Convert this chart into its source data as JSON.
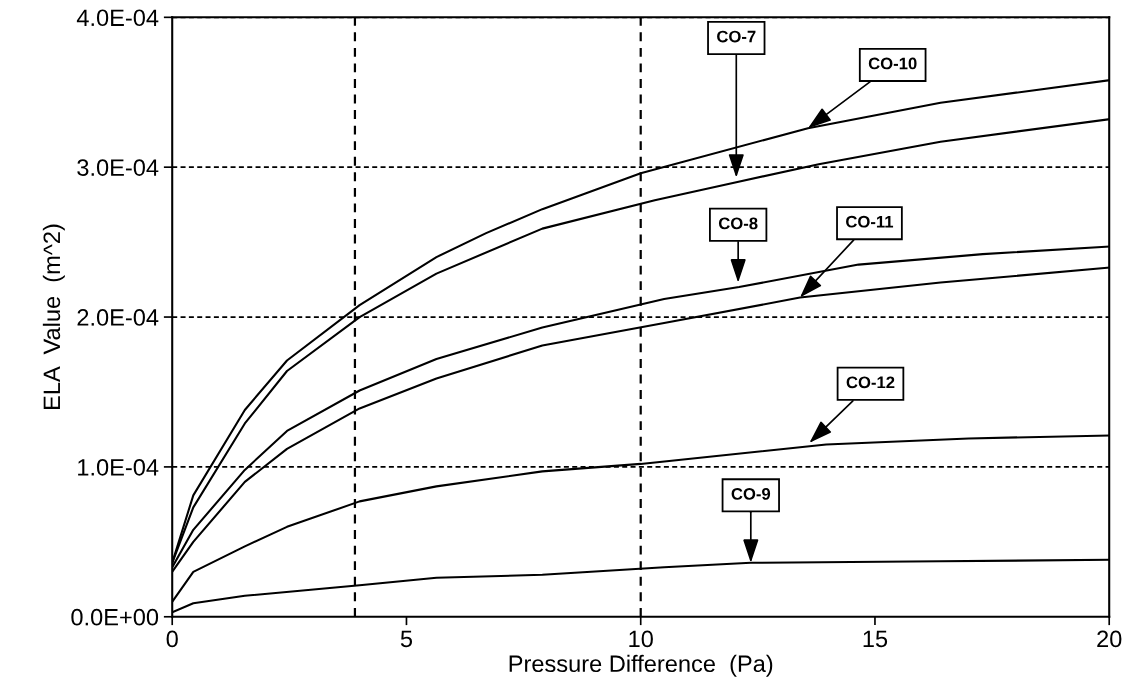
{
  "chart_data": {
    "type": "line",
    "xlabel": "Pressure Difference  (Pa)",
    "ylabel": "ELA  Value  (m^2)",
    "xlim": [
      0,
      20
    ],
    "xticks": [
      0,
      5,
      10,
      15,
      20
    ],
    "ylim": [
      0,
      0.0004
    ],
    "yticks": [
      {
        "value": 0,
        "label": "0.0E+00"
      },
      {
        "value": 0.0001,
        "label": "1.0E-04"
      },
      {
        "value": 0.0002,
        "label": "2.0E-04"
      },
      {
        "value": 0.0003,
        "label": "3.0E-04"
      },
      {
        "value": 0.0004,
        "label": "4.0E-04"
      }
    ],
    "grid": "y",
    "marker": "none",
    "line_style": "solid",
    "series": [
      {
        "color": "#000000",
        "x": [
          0,
          0.45,
          1.55,
          2.45,
          4.0,
          5.64,
          6.7,
          7.9,
          10.0,
          13.57,
          16.4,
          20
        ],
        "values": [
          3.6e-05,
          8.1e-05,
          0.000138,
          0.000171,
          0.000208,
          0.00024,
          0.000256,
          0.000272,
          0.000296,
          0.000326,
          0.000343,
          0.000358
        ]
      },
      {
        "color": "#000000",
        "x": [
          0,
          0.45,
          1.55,
          2.45,
          4.0,
          5.64,
          7.9,
          10.3,
          12.04,
          13.8,
          16.4,
          20
        ],
        "values": [
          3.6e-05,
          7.3e-05,
          0.000129,
          0.000164,
          0.0002,
          0.000229,
          0.000259,
          0.000278,
          0.00029,
          0.000302,
          0.000317,
          0.000332
        ]
      },
      {
        "color": "#000000",
        "x": [
          0,
          0.45,
          1.55,
          2.45,
          4.0,
          5.64,
          7.9,
          10.5,
          12.1,
          14.65,
          17.3,
          20
        ],
        "values": [
          3.3e-05,
          5.8e-05,
          9.8e-05,
          0.000124,
          0.000151,
          0.000172,
          0.000193,
          0.000212,
          0.00022,
          0.000235,
          0.000242,
          0.000247
        ]
      },
      {
        "color": "#000000",
        "x": [
          0,
          0.45,
          1.55,
          2.45,
          4.0,
          5.64,
          7.9,
          10.5,
          13.4,
          16.4,
          20
        ],
        "values": [
          3e-05,
          5e-05,
          9e-05,
          0.000112,
          0.000139,
          0.000159,
          0.000181,
          0.000196,
          0.000213,
          0.000223,
          0.000233
        ]
      },
      {
        "color": "#000000",
        "x": [
          0,
          0.45,
          1.55,
          2.45,
          4.0,
          5.64,
          7.9,
          10.0,
          13.96,
          17.0,
          20
        ],
        "values": [
          1e-05,
          3e-05,
          4.7e-05,
          6e-05,
          7.7e-05,
          8.7e-05,
          9.7e-05,
          0.000102,
          0.000115,
          0.000119,
          0.000121
        ]
      },
      {
        "color": "#000000",
        "x": [
          0,
          0.45,
          1.55,
          4.0,
          5.64,
          7.9,
          10.5,
          12.35,
          16.4,
          20
        ],
        "values": [
          3e-06,
          9e-06,
          1.4e-05,
          2.1e-05,
          2.6e-05,
          2.8e-05,
          3.3e-05,
          3.6e-05,
          3.7e-05,
          3.8e-05
        ]
      }
    ],
    "ref_lines": [
      {
        "axis": "x",
        "value": 3.9,
        "color": "#000000",
        "line_style": "dashed"
      },
      {
        "axis": "x",
        "value": 10,
        "color": "#000000",
        "line_style": "dashed"
      }
    ],
    "annotations": [
      {
        "text": "CO-7",
        "x": 12.04,
        "y": 0.000293
      },
      {
        "text": "CO-10",
        "x": 13.57,
        "y": 0.000326
      },
      {
        "text": "CO-8",
        "x": 12.08,
        "y": 0.000223
      },
      {
        "text": "CO-11",
        "x": 13.4,
        "y": 0.000213
      },
      {
        "text": "CO-12",
        "x": 13.6,
        "y": 0.000116
      },
      {
        "text": "CO-9",
        "x": 12.35,
        "y": 3.6e-05
      }
    ]
  }
}
